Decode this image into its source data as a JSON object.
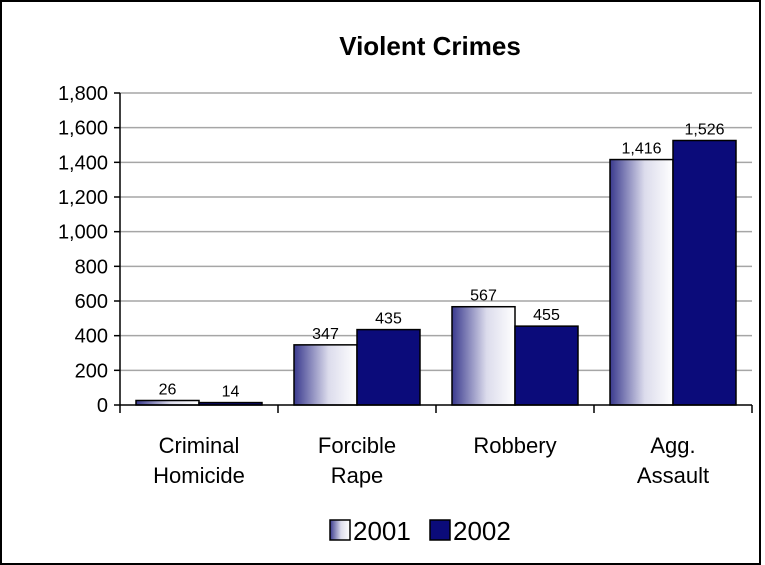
{
  "chart_data": {
    "type": "bar",
    "title": "Violent Crimes",
    "categories": [
      [
        "Criminal",
        "Homicide"
      ],
      [
        "Forcible",
        "Rape"
      ],
      [
        "Robbery"
      ],
      [
        "Agg.",
        "Assault"
      ]
    ],
    "series": [
      {
        "name": "2001",
        "values": [
          26,
          347,
          567,
          1416
        ],
        "labels": [
          "26",
          "347",
          "567",
          "1,416"
        ],
        "color": "#ffffff"
      },
      {
        "name": "2002",
        "values": [
          14,
          435,
          455,
          1526
        ],
        "labels": [
          "14",
          "435",
          "455",
          "1,526"
        ],
        "color": "#0b0b7a"
      }
    ],
    "ylim": [
      0,
      1800
    ],
    "yticks": [
      0,
      200,
      400,
      600,
      800,
      1000,
      1200,
      1400,
      1600,
      1800
    ],
    "ytick_labels": [
      "0",
      "200",
      "400",
      "600",
      "800",
      "1,000",
      "1,200",
      "1,400",
      "1,600",
      "1,800"
    ],
    "grid": true,
    "legend_position": "bottom"
  }
}
